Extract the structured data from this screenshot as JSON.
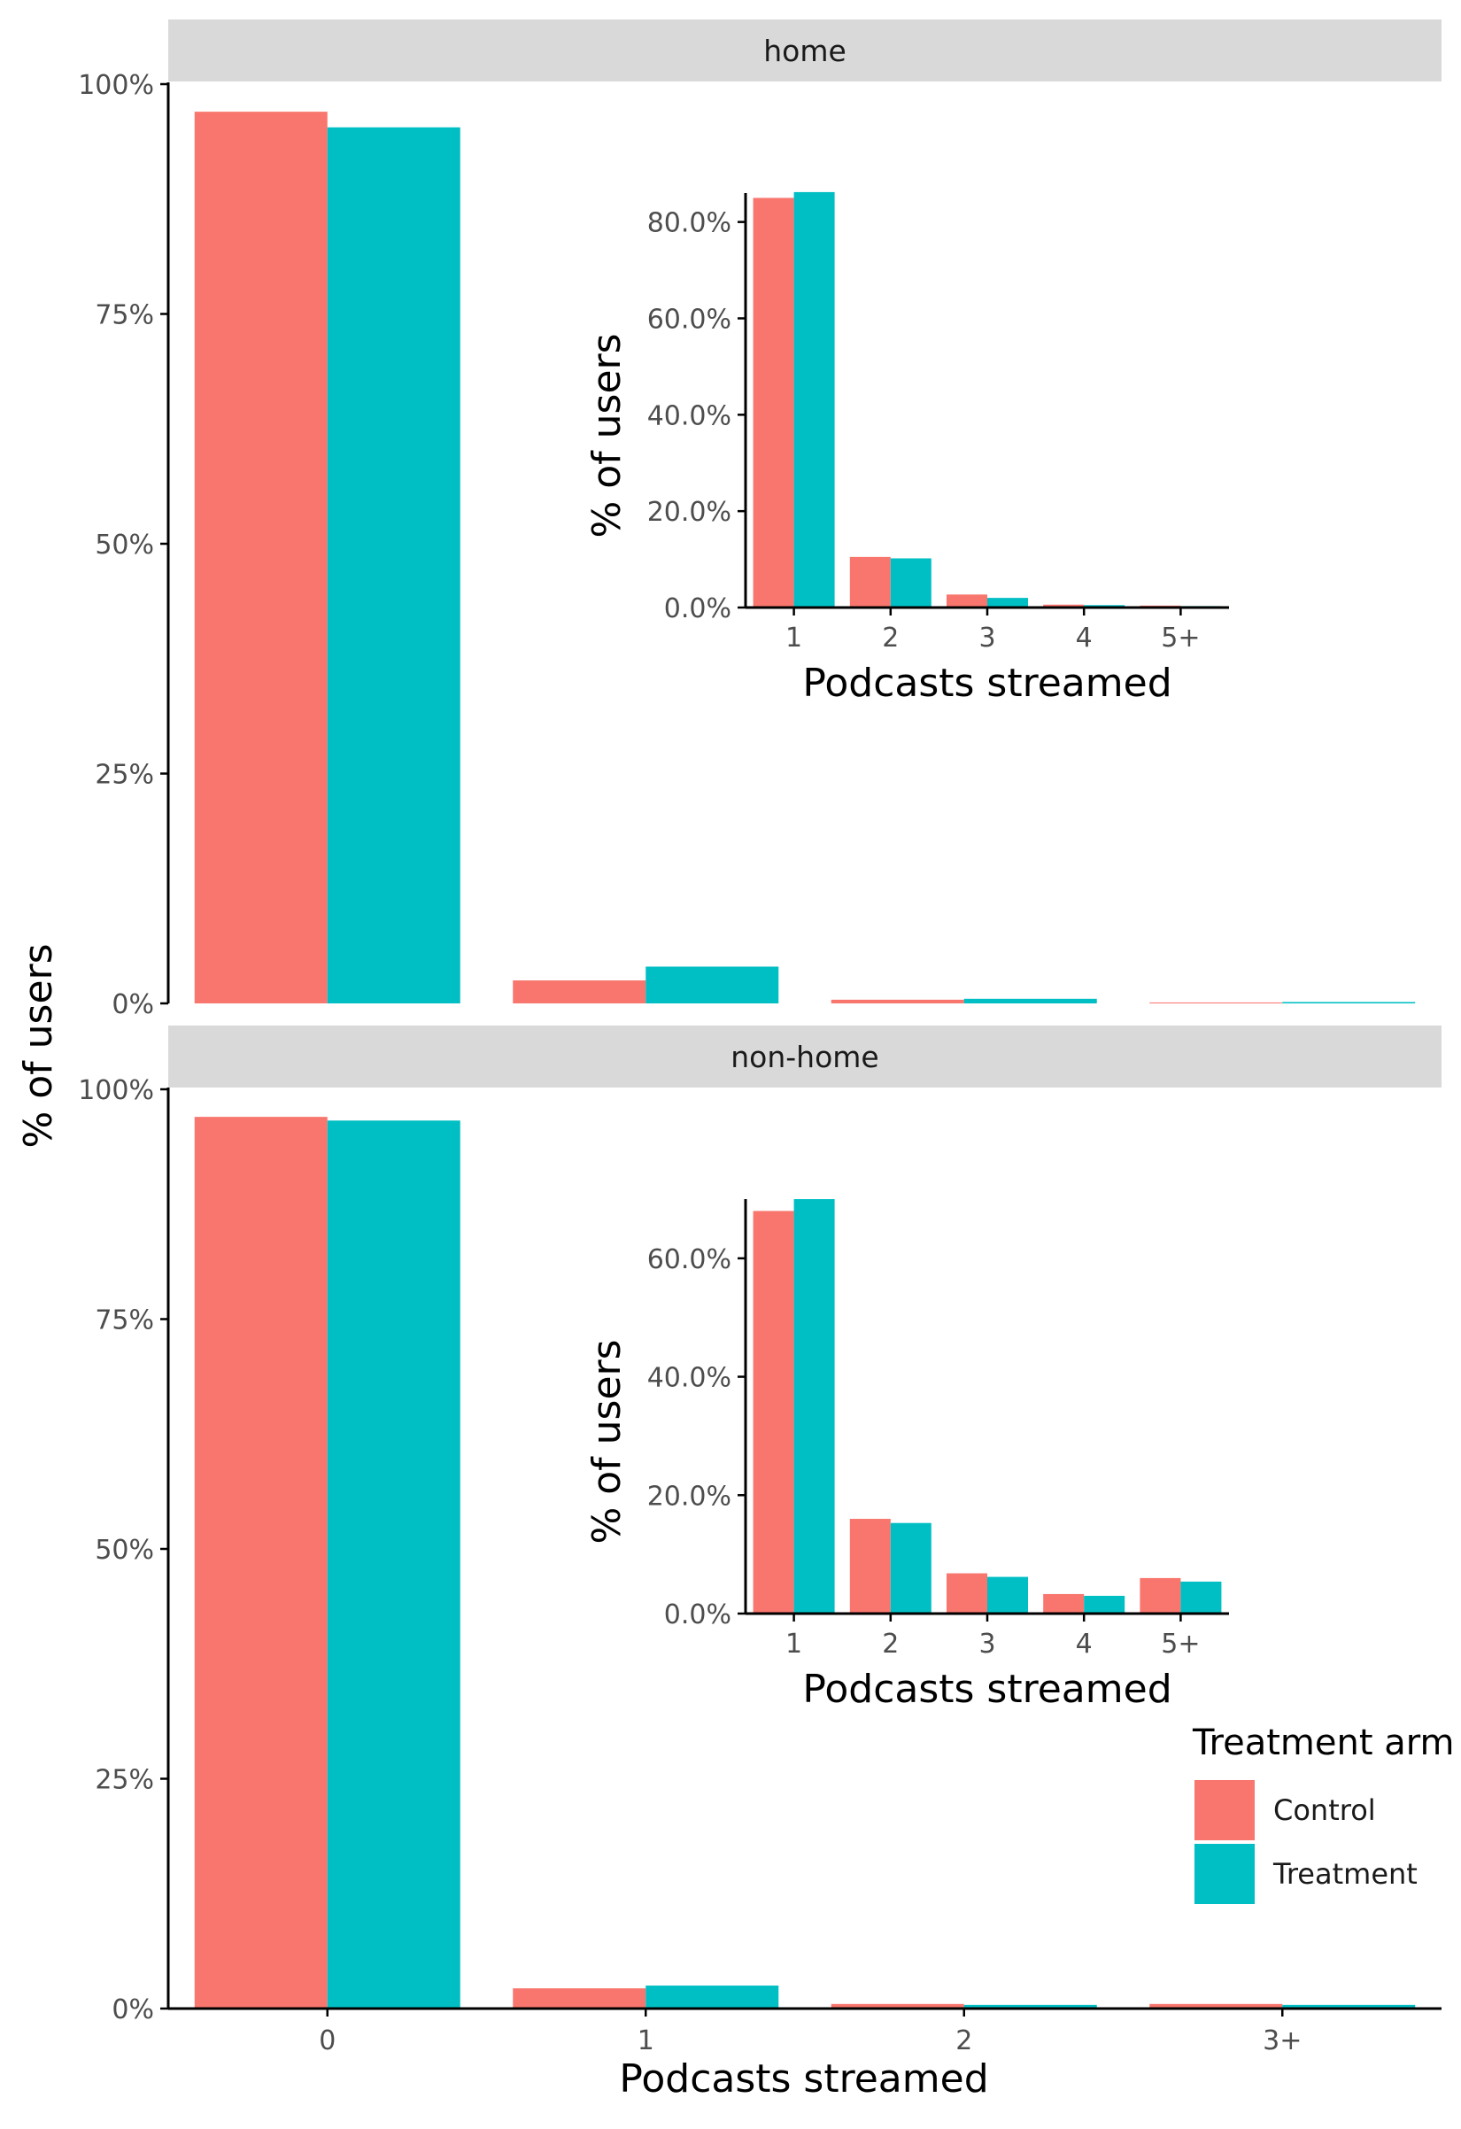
{
  "chart_data": {
    "type": "bar",
    "facet_variable": "location",
    "ylabel": "% of users",
    "xlabel": "Podcasts streamed",
    "categories": [
      "0",
      "1",
      "2",
      "3+"
    ],
    "ylim": [
      0,
      1
    ],
    "yticks": [
      0,
      0.25,
      0.5,
      0.75,
      1.0
    ],
    "ytick_labels": [
      "0%",
      "25%",
      "50%",
      "75%",
      "100%"
    ],
    "legend": {
      "title": "Treatment arm",
      "placement": "right, bottom",
      "entries": [
        {
          "name": "Control",
          "color": "#F8766D"
        },
        {
          "name": "Treatment",
          "color": "#00BFC4"
        }
      ]
    },
    "panels": [
      {
        "strip": "home",
        "series": [
          {
            "name": "Control",
            "values": [
              0.97,
              0.025,
              0.004,
              0.001
            ]
          },
          {
            "name": "Treatment",
            "values": [
              0.953,
              0.04,
              0.005,
              0.0015
            ]
          }
        ],
        "inset": {
          "type": "bar",
          "xlabel": "Podcasts streamed",
          "ylabel": "% of users",
          "categories": [
            "1",
            "2",
            "3",
            "4",
            "5+"
          ],
          "ylim": [
            0,
            0.86
          ],
          "yticks": [
            0,
            0.2,
            0.4,
            0.6,
            0.8
          ],
          "ytick_labels": [
            "0.0%",
            "20.0%",
            "40.0%",
            "60.0%",
            "80.0%"
          ],
          "series": [
            {
              "name": "Control",
              "values": [
                0.85,
                0.105,
                0.027,
                0.006,
                0.004
              ]
            },
            {
              "name": "Treatment",
              "values": [
                0.862,
                0.102,
                0.02,
                0.005,
                0.003
              ]
            }
          ]
        }
      },
      {
        "strip": "non-home",
        "series": [
          {
            "name": "Control",
            "values": [
              0.97,
              0.022,
              0.005,
              0.005
            ]
          },
          {
            "name": "Treatment",
            "values": [
              0.966,
              0.025,
              0.004,
              0.004
            ]
          }
        ],
        "inset": {
          "type": "bar",
          "xlabel": "Podcasts streamed",
          "ylabel": "% of users",
          "categories": [
            "1",
            "2",
            "3",
            "4",
            "5+"
          ],
          "ylim": [
            0,
            0.7
          ],
          "yticks": [
            0,
            0.2,
            0.4,
            0.6
          ],
          "ytick_labels": [
            "0.0%",
            "20.0%",
            "40.0%",
            "60.0%"
          ],
          "series": [
            {
              "name": "Control",
              "values": [
                0.68,
                0.16,
                0.068,
                0.033,
                0.06
              ]
            },
            {
              "name": "Treatment",
              "values": [
                0.7,
                0.153,
                0.062,
                0.03,
                0.054
              ]
            }
          ]
        }
      }
    ]
  }
}
